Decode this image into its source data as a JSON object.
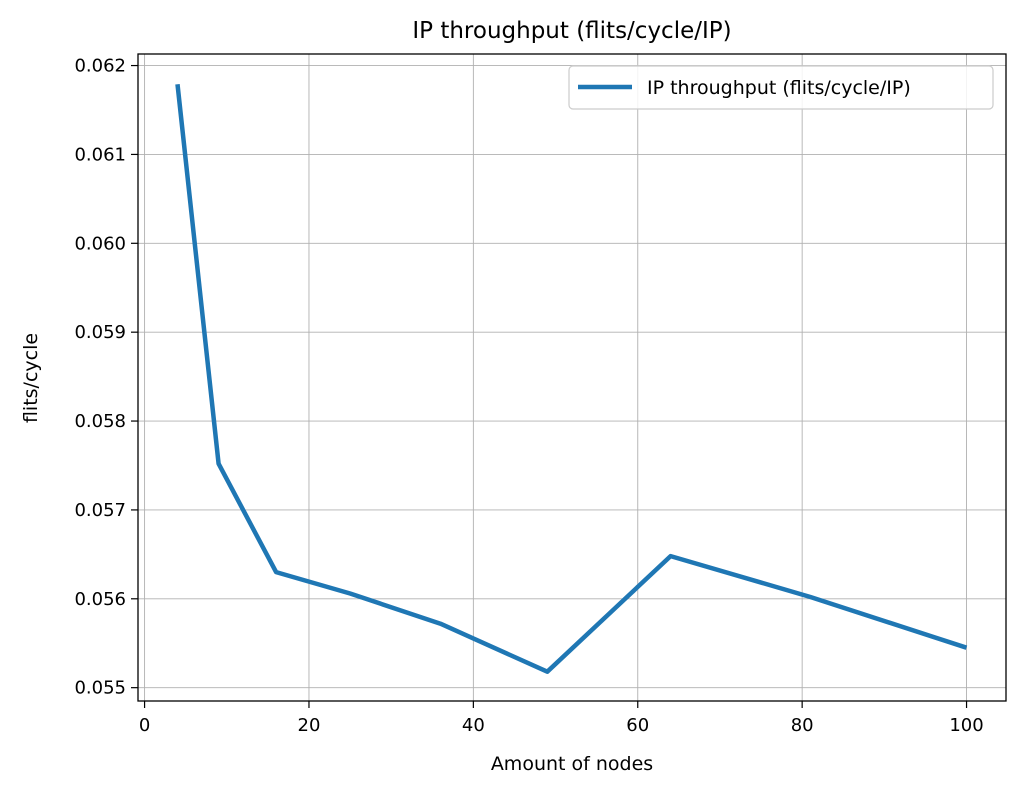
{
  "chart_data": {
    "type": "line",
    "title": "IP throughput (flits/cycle/IP)",
    "xlabel": "Amount of nodes",
    "ylabel": "flits/cycle",
    "xlim": [
      -0.8,
      104.8
    ],
    "ylim": [
      0.05485,
      0.06213
    ],
    "xticks": [
      0,
      20,
      40,
      60,
      80,
      100
    ],
    "xtick_labels": [
      "0",
      "20",
      "40",
      "60",
      "80",
      "100"
    ],
    "yticks": [
      0.055,
      0.056,
      0.057,
      0.058,
      0.059,
      0.06,
      0.061,
      0.062
    ],
    "ytick_labels": [
      "0.055",
      "0.056",
      "0.057",
      "0.058",
      "0.059",
      "0.060",
      "0.061",
      "0.062"
    ],
    "grid": true,
    "legend_position": "top-right",
    "series": [
      {
        "name": "IP throughput (flits/cycle/IP)",
        "color": "#1f77b4",
        "x": [
          4,
          9,
          16,
          25,
          36,
          49,
          64,
          81,
          100
        ],
        "y": [
          0.06179,
          0.05752,
          0.0563,
          0.05606,
          0.05572,
          0.05518,
          0.05648,
          0.05602,
          0.05545
        ]
      }
    ]
  }
}
